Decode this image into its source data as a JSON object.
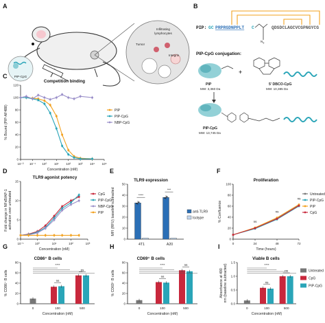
{
  "colors": {
    "untreated": "#777777",
    "cpg": "#c8283c",
    "pip_cpg": "#2aa5b8",
    "nbp_cpg": "#9a8fc9",
    "pip": "#f2a11e",
    "teal": "#2aa5b8",
    "orange": "#f2a11e",
    "blue": "#2b6fb6",
    "sig": "#555555"
  },
  "panel_a": {
    "label": "A",
    "bubble": "Infiltrating lymphocytes",
    "tumor": "Tumor",
    "integrin": "Integrin",
    "probe": "PIP-CpG"
  },
  "panel_b": {
    "label": "B",
    "pip_prefix": "PIP:",
    "seq_gc": "GC",
    "seq_blue": "PRPRGDNPPLT",
    "seq_c": "C",
    "seq_right": "QDSDCLAGCVCGPNGYCG",
    "n3": "N",
    "n3_sub": "3",
    "conj_title": "PIP-CpG conjugation:",
    "pip_name": "PIP",
    "pip_mw": "MW: 3,360 Da",
    "dbco_name": "5' DBCO-CpG",
    "dbco_mw": "MW: 10,385 Da",
    "prod_name": "PIP-CpG",
    "prod_mw": "MW: 13,745 Da",
    "plus": "+"
  },
  "chart_data": [
    {
      "panel": "C",
      "type": "line",
      "title": "Competition binding",
      "xlabel": "Concentration (nM)",
      "ylabel": "% Bound (PIP-AF488)",
      "xscale": "log",
      "xlim": [
        0.01,
        100000
      ],
      "ylim": [
        0,
        120
      ],
      "yticks": [
        0,
        20,
        40,
        60,
        80,
        100,
        120
      ],
      "xtick_labels": [
        "10⁻²",
        "10⁻¹",
        "10⁰",
        "10¹",
        "10²",
        "10³",
        "10⁴",
        "10⁵"
      ],
      "legend": "right",
      "series": [
        {
          "name": "PIP",
          "color": "#f2a11e",
          "x": [
            0.01,
            0.03,
            0.1,
            0.3,
            1,
            3,
            10,
            30,
            100,
            300,
            1000,
            10000
          ],
          "y": [
            100,
            100,
            99,
            98,
            95,
            88,
            70,
            40,
            15,
            5,
            2,
            1
          ]
        },
        {
          "name": "PIP-CpG",
          "color": "#2aa5b8",
          "x": [
            0.01,
            0.03,
            0.1,
            0.3,
            1,
            3,
            10,
            30,
            100,
            300,
            1000,
            10000
          ],
          "y": [
            100,
            100,
            98,
            96,
            90,
            75,
            50,
            22,
            8,
            3,
            1,
            1
          ]
        },
        {
          "name": "NBP-CpG",
          "color": "#9a8fc9",
          "x": [
            0.01,
            0.03,
            0.1,
            0.3,
            1,
            3,
            10,
            30,
            100,
            300,
            1000,
            10000
          ],
          "y": [
            100,
            102,
            98,
            104,
            100,
            97,
            100,
            105,
            100,
            98,
            102,
            100
          ]
        }
      ]
    },
    {
      "panel": "D",
      "type": "line",
      "title": "TLR9 agonist potency",
      "xlabel": "Concentration (nM)",
      "ylabel": "Fold change in NFκB/AP-1 activation over untreated",
      "xscale": "log",
      "xlim": [
        0.1,
        1000
      ],
      "ylim": [
        0,
        15
      ],
      "yticks": [
        0,
        5,
        10,
        15
      ],
      "xtick_labels": [
        "10⁻¹",
        "10⁰",
        "10¹",
        "10²",
        "10³"
      ],
      "legend": "right",
      "series": [
        {
          "name": "CpG",
          "color": "#c8283c",
          "x": [
            0.1,
            0.3,
            1,
            3,
            10,
            30,
            100,
            300
          ],
          "y": [
            1,
            1.3,
            2,
            3.5,
            6,
            8.5,
            10,
            11
          ]
        },
        {
          "name": "PIP-CpG",
          "color": "#2aa5b8",
          "x": [
            0.1,
            0.3,
            1,
            3,
            10,
            30,
            100,
            300
          ],
          "y": [
            1,
            1.2,
            1.8,
            3,
            5.5,
            8,
            9.5,
            11.5
          ]
        },
        {
          "name": "NBP-CpG",
          "color": "#9a8fc9",
          "x": [
            0.1,
            0.3,
            1,
            3,
            10,
            30,
            100,
            300
          ],
          "y": [
            1,
            1.1,
            1.6,
            2.8,
            5,
            7.5,
            9,
            10
          ]
        },
        {
          "name": "PIP",
          "color": "#f2a11e",
          "x": [
            0.1,
            0.3,
            1,
            3,
            10,
            30,
            100,
            300
          ],
          "y": [
            1,
            1,
            1,
            1,
            1,
            1,
            1,
            1
          ]
        }
      ]
    },
    {
      "panel": "E",
      "type": "bar",
      "title": "TLR9 expression",
      "ylabel": "MFI (RFU) baseline subtracted",
      "categories": [
        "4T1",
        "A20"
      ],
      "ylim": [
        0,
        50
      ],
      "yticks": [
        0,
        10,
        20,
        30,
        40,
        50
      ],
      "legend": "right",
      "significance": [
        "****",
        "***"
      ],
      "series": [
        {
          "name": "anti-TLR9",
          "color": "#2b6fb6",
          "values": [
            33,
            38
          ]
        },
        {
          "name": "Isotype",
          "color": "#c4d7ee",
          "values": [
            1,
            1
          ]
        }
      ]
    },
    {
      "panel": "F",
      "type": "line",
      "title": "Proliferation",
      "xlabel": "Time (hours)",
      "ylabel": "% Confluence",
      "xlim": [
        0,
        72
      ],
      "xticks": [
        0,
        24,
        48,
        72
      ],
      "ylim": [
        0,
        100
      ],
      "yticks": [
        0,
        20,
        40,
        60,
        80,
        100
      ],
      "legend": "right",
      "significance": [
        "ns",
        "ns",
        "ns"
      ],
      "series": [
        {
          "name": "Untreated",
          "color": "#777777",
          "x": [
            0,
            24,
            48,
            72
          ],
          "y": [
            8,
            20,
            38,
            62
          ]
        },
        {
          "name": "PIP-CpG",
          "color": "#2aa5b8",
          "x": [
            0,
            24,
            48,
            72
          ],
          "y": [
            8,
            19,
            36,
            60
          ]
        },
        {
          "name": "PIP",
          "color": "#f2a11e",
          "x": [
            0,
            24,
            48,
            72
          ],
          "y": [
            8,
            21,
            39,
            63
          ]
        },
        {
          "name": "CpG",
          "color": "#c8283c",
          "x": [
            0,
            24,
            48,
            72
          ],
          "y": [
            8,
            20,
            37,
            61
          ]
        }
      ]
    },
    {
      "panel": "G",
      "type": "bar",
      "title": "CD86⁺ B cells",
      "xlabel": "Concentration (nM)",
      "ylabel": "% CD86⁺ B cells",
      "categories": [
        "0",
        "100",
        "500"
      ],
      "ylim": [
        0,
        80
      ],
      "yticks": [
        0,
        20,
        40,
        60,
        80
      ],
      "significance": [
        "****",
        "ns",
        "ns"
      ],
      "series": [
        {
          "name": "Untreated",
          "color": "#777777",
          "values": [
            10,
            null,
            null
          ]
        },
        {
          "name": "CpG",
          "color": "#c8283c",
          "values": [
            null,
            33,
            55
          ]
        },
        {
          "name": "PIP-CpG",
          "color": "#2aa5b8",
          "values": [
            null,
            34,
            55
          ]
        }
      ]
    },
    {
      "panel": "H",
      "type": "bar",
      "title": "CD69⁺ B cells",
      "xlabel": "Concentration (nM)",
      "ylabel": "% CD69⁺ B cells",
      "categories": [
        "0",
        "100",
        "500"
      ],
      "ylim": [
        0,
        80
      ],
      "yticks": [
        0,
        20,
        40,
        60,
        80
      ],
      "significance": [
        "****",
        "ns",
        "ns"
      ],
      "series": [
        {
          "name": "Untreated",
          "color": "#777777",
          "values": [
            7,
            null,
            null
          ]
        },
        {
          "name": "CpG",
          "color": "#c8283c",
          "values": [
            null,
            42,
            65
          ]
        },
        {
          "name": "PIP-CpG",
          "color": "#2aa5b8",
          "values": [
            null,
            41,
            63
          ]
        }
      ]
    },
    {
      "panel": "I",
      "type": "bar",
      "title": "Viable B cells",
      "xlabel": "Concentration (nM)",
      "ylabel": "Absorbance at 490 nm (baseline subtracted)",
      "categories": [
        "0",
        "100",
        "500"
      ],
      "ylim": [
        0,
        1.5
      ],
      "yticks": [
        0,
        0.5,
        1.0,
        1.5
      ],
      "legend": "right",
      "significance": [
        "****",
        "ns",
        "ns"
      ],
      "series": [
        {
          "name": "Untreated",
          "color": "#777777",
          "values": [
            0.12,
            null,
            null
          ]
        },
        {
          "name": "CpG",
          "color": "#c8283c",
          "values": [
            null,
            0.58,
            1.0
          ]
        },
        {
          "name": "PIP-CpG",
          "color": "#2aa5b8",
          "values": [
            null,
            0.55,
            1.0
          ]
        }
      ]
    }
  ]
}
